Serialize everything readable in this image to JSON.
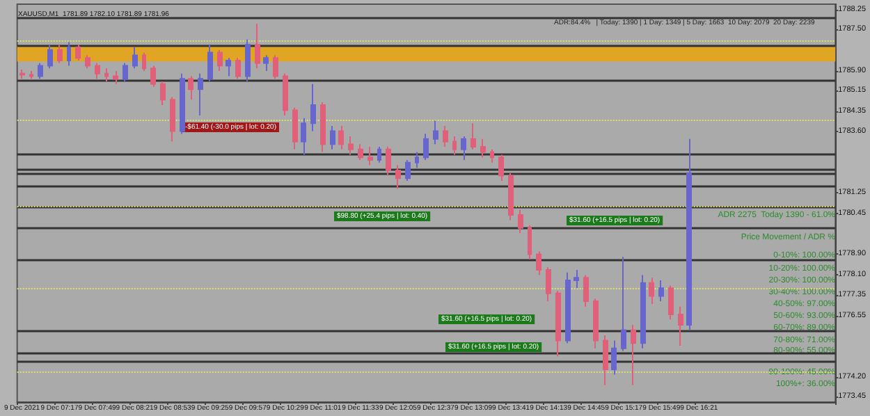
{
  "chart_data": {
    "type": "candlestick",
    "title": "XAUUSD,M1  1781.89 1782.10 1781.89 1781.96",
    "categories": [
      "9 Dec 2021",
      null,
      null,
      null,
      "9 Dec 07:17",
      null,
      null,
      null,
      "9 Dec 07:49",
      null,
      null,
      null,
      "9 Dec 08:21",
      null,
      null,
      null,
      "9 Dec 08:53",
      null,
      null,
      null,
      "9 Dec 09:25",
      null,
      null,
      null,
      "9 Dec 09:57",
      null,
      null,
      null,
      "9 Dec 10:29",
      null,
      null,
      null,
      "9 Dec 11:01",
      null,
      null,
      null,
      "9 Dec 11:33",
      null,
      null,
      null,
      "9 Dec 12:05",
      null,
      null,
      null,
      "9 Dec 12:37",
      null,
      null,
      null,
      "9 Dec 13:09",
      null,
      null,
      null,
      "9 Dec 13:41",
      null,
      null,
      null,
      "9 Dec 14:13",
      null,
      null,
      null,
      "9 Dec 14:45",
      null,
      null,
      null,
      "9 Dec 15:17",
      null,
      null,
      null,
      "9 Dec 15:49",
      null,
      null,
      null,
      "9 Dec 16:21",
      null,
      null,
      null,
      null,
      null,
      null,
      null,
      null,
      null,
      null,
      null,
      null,
      null,
      null
    ],
    "colors": [
      "#e0607a",
      "#e0607a",
      "#6666cc",
      "#6666cc",
      "#e0607a",
      "#6666cc",
      "#e0607a",
      "#e0607a",
      "#e0607a",
      "#e0607a",
      "#e0607a",
      "#6666cc",
      "#6666cc",
      "#e0607a",
      "#e0607a",
      "#e0607a",
      "#e0607a",
      "#6666cc",
      "#e0607a",
      "#6666cc",
      "#6666cc",
      "#e0607a",
      "#6666cc",
      "#e0607a",
      "#6666cc",
      "#e0607a",
      "#6666cc",
      "#e0607a",
      "#e0607a",
      "#e0607a",
      "#6666cc",
      "#6666cc",
      "#e0607a",
      "#6666cc",
      "#e0607a",
      "#e0607a",
      "#e0607a",
      "#e0607a",
      "#6666cc",
      "#e0607a",
      "#e0607a",
      "#6666cc",
      "#6666cc",
      "#6666cc",
      "#6666cc",
      "#e0607a",
      "#e0607a",
      "#6666cc",
      "#e0607a",
      "#e0607a",
      "#e0607a",
      "#e0607a",
      "#e0607a",
      "#e0607a",
      "#e0607a",
      "#e0607a",
      "#e0607a",
      "#e0607a",
      "#6666cc",
      "#6666cc",
      "#e0607a",
      "#e0607a",
      "#e0607a",
      "#6666cc",
      "#6666cc",
      "#e0607a",
      "#6666cc",
      "#e0607a",
      "#6666cc",
      "#e0607a",
      "#e0607a",
      "#6666cc",
      null,
      null,
      null,
      null,
      null,
      null,
      null,
      null,
      null,
      null,
      null,
      null,
      null,
      null,
      null
    ],
    "ohlc": [
      [
        1785.8,
        1785.95,
        1785.6,
        1785.75
      ],
      [
        1785.75,
        1785.9,
        1785.6,
        1785.7
      ],
      [
        1785.7,
        1786.2,
        1785.6,
        1786.1
      ],
      [
        1786.1,
        1786.9,
        1786.0,
        1786.7
      ],
      [
        1786.7,
        1786.9,
        1786.2,
        1786.3
      ],
      [
        1786.3,
        1787.0,
        1786.1,
        1786.8
      ],
      [
        1786.8,
        1786.9,
        1786.3,
        1786.4
      ],
      [
        1786.4,
        1786.5,
        1786.0,
        1786.1
      ],
      [
        1786.1,
        1786.2,
        1785.6,
        1785.8
      ],
      [
        1785.8,
        1786.0,
        1785.5,
        1785.7
      ],
      [
        1785.7,
        1785.9,
        1785.4,
        1785.6
      ],
      [
        1785.6,
        1786.2,
        1785.5,
        1786.1
      ],
      [
        1786.1,
        1786.8,
        1786.0,
        1786.5
      ],
      [
        1786.5,
        1786.6,
        1785.9,
        1786.0
      ],
      [
        1786.0,
        1786.1,
        1785.3,
        1785.4
      ],
      [
        1785.4,
        1785.5,
        1784.6,
        1784.8
      ],
      [
        1784.8,
        1784.9,
        1783.2,
        1783.6
      ],
      [
        1783.6,
        1785.8,
        1783.5,
        1785.6
      ],
      [
        1785.6,
        1785.7,
        1784.8,
        1785.2
      ],
      [
        1785.2,
        1785.8,
        1784.2,
        1785.6
      ],
      [
        1785.6,
        1786.9,
        1785.5,
        1786.6
      ],
      [
        1786.6,
        1786.7,
        1785.9,
        1786.1
      ],
      [
        1786.1,
        1786.4,
        1785.7,
        1786.3
      ],
      [
        1786.3,
        1786.4,
        1785.6,
        1785.7
      ],
      [
        1785.7,
        1787.1,
        1785.5,
        1786.9
      ],
      [
        1786.9,
        1787.7,
        1786.0,
        1786.2
      ],
      [
        1786.2,
        1786.5,
        1785.9,
        1786.4
      ],
      [
        1786.4,
        1786.5,
        1785.6,
        1785.7
      ],
      [
        1785.7,
        1785.8,
        1784.2,
        1784.4
      ],
      [
        1784.4,
        1784.5,
        1782.9,
        1783.2
      ],
      [
        1783.2,
        1784.1,
        1782.7,
        1783.9
      ],
      [
        1783.9,
        1785.4,
        1783.6,
        1784.6
      ],
      [
        1784.6,
        1784.7,
        1782.8,
        1783.1
      ],
      [
        1783.1,
        1783.8,
        1782.9,
        1783.6
      ],
      [
        1783.6,
        1783.8,
        1782.9,
        1783.1
      ],
      [
        1783.1,
        1783.4,
        1782.7,
        1782.9
      ],
      [
        1782.9,
        1783.1,
        1782.5,
        1782.6
      ],
      [
        1782.6,
        1783.0,
        1782.3,
        1782.5
      ],
      [
        1782.5,
        1783.0,
        1782.4,
        1782.9
      ],
      [
        1782.9,
        1783.0,
        1781.9,
        1782.1
      ],
      [
        1782.1,
        1782.3,
        1781.4,
        1781.8
      ],
      [
        1781.8,
        1782.5,
        1781.7,
        1782.4
      ],
      [
        1782.4,
        1782.8,
        1782.2,
        1782.6
      ],
      [
        1782.6,
        1783.5,
        1782.5,
        1783.3
      ],
      [
        1783.3,
        1784.0,
        1783.1,
        1783.6
      ],
      [
        1783.6,
        1783.8,
        1783.0,
        1783.2
      ],
      [
        1783.2,
        1783.4,
        1782.7,
        1782.9
      ],
      [
        1782.9,
        1783.4,
        1782.5,
        1783.3
      ],
      [
        1783.3,
        1783.9,
        1782.9,
        1783.0
      ],
      [
        1783.0,
        1783.3,
        1782.6,
        1782.8
      ],
      [
        1782.8,
        1782.9,
        1782.4,
        1782.6
      ],
      [
        1782.6,
        1782.7,
        1781.7,
        1781.9
      ],
      [
        1781.9,
        1782.0,
        1780.2,
        1780.4
      ],
      [
        1780.4,
        1780.6,
        1779.7,
        1779.9
      ],
      [
        1779.9,
        1780.0,
        1778.7,
        1778.9
      ],
      [
        1778.9,
        1779.0,
        1778.1,
        1778.3
      ],
      [
        1778.3,
        1778.4,
        1777.1,
        1777.4
      ],
      [
        1777.4,
        1777.5,
        1775.0,
        1775.6
      ],
      [
        1775.6,
        1778.2,
        1775.5,
        1777.9
      ],
      [
        1777.9,
        1778.3,
        1777.6,
        1778.0
      ],
      [
        1778.0,
        1778.1,
        1776.9,
        1777.1
      ],
      [
        1777.1,
        1777.2,
        1775.3,
        1775.6
      ],
      [
        1775.6,
        1775.8,
        1773.9,
        1774.5
      ],
      [
        1774.5,
        1775.6,
        1774.3,
        1775.3
      ],
      [
        1775.3,
        1778.8,
        1775.2,
        1776.0
      ],
      [
        1776.0,
        1776.2,
        1773.9,
        1775.5
      ],
      [
        1775.5,
        1778.1,
        1775.3,
        1777.8
      ],
      [
        1777.8,
        1778.0,
        1777.0,
        1777.3
      ],
      [
        1777.3,
        1777.9,
        1777.1,
        1777.6
      ],
      [
        1777.6,
        1777.7,
        1776.4,
        1776.6
      ],
      [
        1776.6,
        1776.9,
        1775.4,
        1776.2
      ],
      [
        1776.2,
        1783.3,
        1776.0,
        1782.0
      ],
      null,
      null,
      null,
      null,
      null,
      null,
      null,
      null,
      null,
      null,
      null,
      null,
      null,
      null,
      null
    ],
    "ylim": [
      1773.25,
      1788.45
    ],
    "yticks": [
      {
        "value": 1788.25,
        "label": "1788.25"
      },
      {
        "value": 1787.5,
        "label": "1787.50"
      },
      {
        "value": 1785.9,
        "label": "1785.90"
      },
      {
        "value": 1785.15,
        "label": "1785.15"
      },
      {
        "value": 1784.35,
        "label": "1784.35"
      },
      {
        "value": 1783.6,
        "label": "1783.60"
      },
      {
        "value": 1781.25,
        "label": "1781.25"
      },
      {
        "value": 1780.45,
        "label": "1780.45"
      },
      {
        "value": 1778.9,
        "label": "1778.90"
      },
      {
        "value": 1778.1,
        "label": "1778.10"
      },
      {
        "value": 1777.35,
        "label": "1777.35"
      },
      {
        "value": 1776.55,
        "label": "1776.55"
      },
      {
        "value": 1774.2,
        "label": "1774.20"
      },
      {
        "value": 1773.45,
        "label": "1773.45"
      }
    ],
    "bands": [
      {
        "axis": "y",
        "from": 1786.26,
        "to": 1786.87,
        "color": "#e0a525"
      }
    ],
    "ref_lines": [
      {
        "axis": "y",
        "value": 1787.95,
        "color": "#333333",
        "line_style": "solid"
      },
      {
        "axis": "y",
        "value": 1786.87,
        "color": "#333333",
        "line_style": "solid"
      },
      {
        "axis": "y",
        "value": 1785.53,
        "color": "#333333",
        "line_style": "solid"
      },
      {
        "axis": "y",
        "value": 1782.7,
        "color": "#333333",
        "line_style": "solid"
      },
      {
        "axis": "y",
        "value": 1782.12,
        "color": "#333333",
        "line_style": "solid"
      },
      {
        "axis": "y",
        "value": 1781.97,
        "color": "#333333",
        "line_style": "solid"
      },
      {
        "axis": "y",
        "value": 1781.5,
        "color": "#333333",
        "line_style": "solid"
      },
      {
        "axis": "y",
        "value": 1780.71,
        "color": "#333333",
        "line_style": "solid"
      },
      {
        "axis": "y",
        "value": 1779.89,
        "color": "#333333",
        "line_style": "solid"
      },
      {
        "axis": "y",
        "value": 1778.67,
        "color": "#333333",
        "line_style": "solid"
      },
      {
        "axis": "y",
        "value": 1775.95,
        "color": "#333333",
        "line_style": "solid"
      },
      {
        "axis": "y",
        "value": 1775.12,
        "color": "#333333",
        "line_style": "solid"
      },
      {
        "axis": "y",
        "value": 1774.78,
        "color": "#333333",
        "line_style": "solid"
      },
      {
        "axis": "y",
        "value": 1787.05,
        "color": "#e0e070",
        "line_style": "dotted"
      },
      {
        "axis": "y",
        "value": 1784.01,
        "color": "#e0e070",
        "line_style": "dotted"
      },
      {
        "axis": "y",
        "value": 1780.75,
        "color": "#e0e070",
        "line_style": "dotted"
      },
      {
        "axis": "y",
        "value": 1777.62,
        "color": "#e0e070",
        "line_style": "dotted"
      },
      {
        "axis": "y",
        "value": 1774.43,
        "color": "#e0e070",
        "line_style": "dotted"
      }
    ],
    "annotations": [
      "ADR:84.4%   | Today: 1390 | 1 Day: 1349 | 5 Day: 1663  10 Day: 2079  20 Day: 2239",
      "-$61.40 (-30.0 pips | lot: 0.20)",
      "$98.80 (+25.4 pips | lot: 0.40)",
      "$31.60 (+16.5 pips | lot: 0.20)",
      "$31.60 (+16.5 pips | lot: 0.20)",
      "$31.60 (+16.5 pips | lot: 0.20)",
      "ADR 2275  Today 1390 - 61.0%",
      "Price Movement / ADR %",
      "0-10%: 100.00%",
      "10-20%: 100.00%",
      "20-30%: 100.00%",
      "30-40%: 100.00%",
      "40-50%: 97.00%",
      "50-60%: 93.00%",
      "60-70%: 89.00%",
      "70-80%: 71.00%",
      "80-90%: 55.00%",
      "90-100%: 45.00%",
      "100%+: 36.00%"
    ],
    "grid": false
  }
}
